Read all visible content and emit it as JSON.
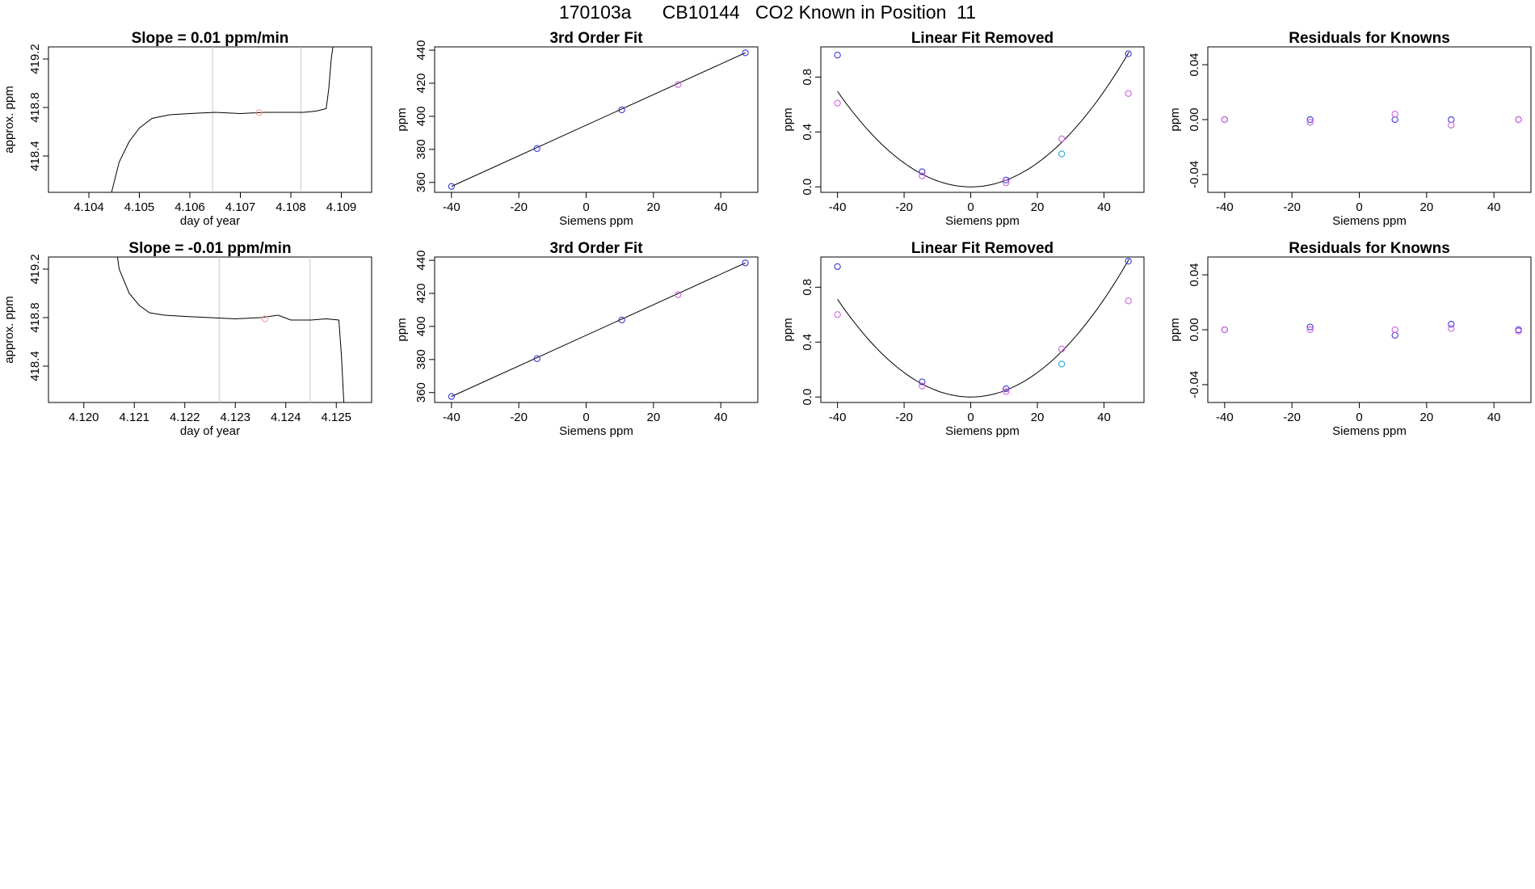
{
  "figure": {
    "title": "170103a      CB10144   CO2 Known in Position  11"
  },
  "chart_data": [
    {
      "type": "line",
      "title": "Slope =  0.01  ppm/min",
      "xlabel": "day of year",
      "ylabel": "approx. ppm",
      "xlim": [
        4.1032,
        4.1096
      ],
      "ylim": [
        418.1,
        419.3
      ],
      "xticks": [
        4.104,
        4.105,
        4.106,
        4.107,
        4.108,
        4.109
      ],
      "yticks": [
        418.4,
        418.8,
        419.2
      ],
      "vlines": [
        4.10645,
        4.1082
      ],
      "series": [
        {
          "x": [
            4.10445,
            4.1046,
            4.1048,
            4.105,
            4.10525,
            4.1056,
            4.106,
            4.1065,
            4.107,
            4.1075,
            4.108,
            4.10825,
            4.1085,
            4.1087,
            4.10875,
            4.1088,
            4.10885
          ],
          "y": [
            418.1,
            418.35,
            418.52,
            418.63,
            418.71,
            418.74,
            418.75,
            418.76,
            418.75,
            418.76,
            418.76,
            418.76,
            418.77,
            418.79,
            418.95,
            419.2,
            419.35
          ]
        }
      ],
      "points": [
        {
          "x": 4.10737,
          "y": 418.757,
          "color": "#ff9d9d"
        }
      ]
    },
    {
      "type": "scatter",
      "title": "3rd Order Fit",
      "xlabel": "Siemens ppm",
      "ylabel": "ppm",
      "xlim": [
        -45,
        51
      ],
      "ylim": [
        354,
        442
      ],
      "xticks": [
        -40,
        -20,
        0,
        20,
        40
      ],
      "yticks": [
        360,
        380,
        400,
        420,
        440
      ],
      "fit": [
        [
          -40,
          357.6
        ],
        [
          47.3,
          438.4
        ]
      ],
      "points": [
        {
          "x": -40,
          "y": 357.6,
          "color": "#3a3ad8"
        },
        {
          "x": -14.6,
          "y": 380.5,
          "color": "#3a3ad8"
        },
        {
          "x": 10.6,
          "y": 403.9,
          "color": "#3a3ad8"
        },
        {
          "x": 27.3,
          "y": 419.2,
          "color": "#d060e0"
        },
        {
          "x": 47.3,
          "y": 438.4,
          "color": "#3a3ad8"
        }
      ]
    },
    {
      "type": "scatter",
      "title": "Linear Fit Removed",
      "xlabel": "Siemens ppm",
      "ylabel": "ppm",
      "xlim": [
        -45,
        52
      ],
      "ylim": [
        -0.04,
        1.02
      ],
      "xticks": [
        -40,
        -20,
        0,
        20,
        40
      ],
      "yticks": [
        0.0,
        0.4,
        0.8
      ],
      "curve": {
        "a": 0.000435,
        "from": -40,
        "to": 47.5
      },
      "points": [
        {
          "x": -40,
          "y": 0.96,
          "color": "#3a3ad8"
        },
        {
          "x": -40,
          "y": 0.61,
          "color": "#d060e0"
        },
        {
          "x": -14.6,
          "y": 0.11,
          "color": "#3a3ad8"
        },
        {
          "x": -14.6,
          "y": 0.08,
          "color": "#d060e0"
        },
        {
          "x": 10.6,
          "y": 0.05,
          "color": "#3a3ad8"
        },
        {
          "x": 10.6,
          "y": 0.03,
          "color": "#d060e0"
        },
        {
          "x": 27.3,
          "y": 0.35,
          "color": "#d060e0"
        },
        {
          "x": 27.3,
          "y": 0.24,
          "color": "#22aadd"
        },
        {
          "x": 47.3,
          "y": 0.97,
          "color": "#3a3ad8"
        },
        {
          "x": 47.3,
          "y": 0.68,
          "color": "#d060e0"
        }
      ]
    },
    {
      "type": "scatter",
      "title": "Residuals for Knowns",
      "xlabel": "Siemens ppm",
      "ylabel": "ppm",
      "xlim": [
        -45,
        51
      ],
      "ylim": [
        -0.053,
        0.053
      ],
      "xticks": [
        -40,
        -20,
        0,
        20,
        40
      ],
      "yticks": [
        -0.04,
        0.0,
        0.04
      ],
      "ytick_labels": [
        "-0.04",
        "0.00",
        "0.04"
      ],
      "points": [
        {
          "x": -40,
          "y": 0.0,
          "color": "#3a3ad8"
        },
        {
          "x": -40,
          "y": 0.0,
          "color": "#d060e0"
        },
        {
          "x": -14.6,
          "y": 0.0,
          "color": "#3a3ad8"
        },
        {
          "x": -14.6,
          "y": -0.002,
          "color": "#d060e0"
        },
        {
          "x": 10.6,
          "y": 0.0,
          "color": "#3a3ad8"
        },
        {
          "x": 10.6,
          "y": 0.004,
          "color": "#d060e0"
        },
        {
          "x": 27.3,
          "y": 0.0,
          "color": "#3a3ad8"
        },
        {
          "x": 27.3,
          "y": -0.004,
          "color": "#d060e0"
        },
        {
          "x": 47.3,
          "y": 0.0,
          "color": "#3a3ad8"
        },
        {
          "x": 47.3,
          "y": 0.0,
          "color": "#d060e0"
        }
      ]
    },
    {
      "type": "line",
      "title": "Slope =  -0.01  ppm/min",
      "xlabel": "day of year",
      "ylabel": "approx. ppm",
      "xlim": [
        4.1193,
        4.1257
      ],
      "ylim": [
        418.1,
        419.3
      ],
      "xticks": [
        4.12,
        4.121,
        4.122,
        4.123,
        4.124,
        4.125
      ],
      "yticks": [
        418.4,
        418.8,
        419.2
      ],
      "vlines": [
        4.12268,
        4.12448
      ],
      "series": [
        {
          "x": [
            4.12065,
            4.1207,
            4.1209,
            4.1211,
            4.1213,
            4.1216,
            4.122,
            4.1225,
            4.123,
            4.1235,
            4.12385,
            4.1241,
            4.1245,
            4.1248,
            4.12505,
            4.1251,
            4.12515
          ],
          "y": [
            419.35,
            419.2,
            419.0,
            418.9,
            418.84,
            418.82,
            418.81,
            418.8,
            418.79,
            418.8,
            418.82,
            418.78,
            418.78,
            418.79,
            418.78,
            418.5,
            418.1
          ]
        }
      ],
      "points": [
        {
          "x": 4.12359,
          "y": 418.79,
          "color": "#ff9d9d"
        }
      ]
    },
    {
      "type": "scatter",
      "title": "3rd Order Fit",
      "xlabel": "Siemens ppm",
      "ylabel": "ppm",
      "xlim": [
        -45,
        51
      ],
      "ylim": [
        354,
        442
      ],
      "xticks": [
        -40,
        -20,
        0,
        20,
        40
      ],
      "yticks": [
        360,
        380,
        400,
        420,
        440
      ],
      "fit": [
        [
          -40,
          357.6
        ],
        [
          47.3,
          438.4
        ]
      ],
      "points": [
        {
          "x": -40,
          "y": 357.6,
          "color": "#3a3ad8"
        },
        {
          "x": -14.6,
          "y": 380.5,
          "color": "#3a3ad8"
        },
        {
          "x": 10.6,
          "y": 403.9,
          "color": "#3a3ad8"
        },
        {
          "x": 27.3,
          "y": 419.2,
          "color": "#d060e0"
        },
        {
          "x": 47.3,
          "y": 438.4,
          "color": "#3a3ad8"
        }
      ]
    },
    {
      "type": "scatter",
      "title": "Linear Fit Removed",
      "xlabel": "Siemens ppm",
      "ylabel": "ppm",
      "xlim": [
        -45,
        52
      ],
      "ylim": [
        -0.04,
        1.02
      ],
      "xticks": [
        -40,
        -20,
        0,
        20,
        40
      ],
      "yticks": [
        0.0,
        0.4,
        0.8
      ],
      "curve": {
        "a": 0.000445,
        "from": -40,
        "to": 47.5
      },
      "points": [
        {
          "x": -40,
          "y": 0.95,
          "color": "#3a3ad8"
        },
        {
          "x": -40,
          "y": 0.6,
          "color": "#d060e0"
        },
        {
          "x": -14.6,
          "y": 0.11,
          "color": "#3a3ad8"
        },
        {
          "x": -14.6,
          "y": 0.08,
          "color": "#d060e0"
        },
        {
          "x": 10.6,
          "y": 0.06,
          "color": "#3a3ad8"
        },
        {
          "x": 10.6,
          "y": 0.04,
          "color": "#d060e0"
        },
        {
          "x": 27.3,
          "y": 0.35,
          "color": "#d060e0"
        },
        {
          "x": 27.3,
          "y": 0.24,
          "color": "#22aadd"
        },
        {
          "x": 47.3,
          "y": 0.99,
          "color": "#3a3ad8"
        },
        {
          "x": 47.3,
          "y": 0.7,
          "color": "#d060e0"
        }
      ]
    },
    {
      "type": "scatter",
      "title": "Residuals for Knowns",
      "xlabel": "Siemens ppm",
      "ylabel": "ppm",
      "xlim": [
        -45,
        51
      ],
      "ylim": [
        -0.053,
        0.053
      ],
      "xticks": [
        -40,
        -20,
        0,
        20,
        40
      ],
      "yticks": [
        -0.04,
        0.0,
        0.04
      ],
      "ytick_labels": [
        "-0.04",
        "0.00",
        "0.04"
      ],
      "points": [
        {
          "x": -40,
          "y": 0.0,
          "color": "#3a3ad8"
        },
        {
          "x": -40,
          "y": 0.0,
          "color": "#d060e0"
        },
        {
          "x": -14.6,
          "y": 0.002,
          "color": "#3a3ad8"
        },
        {
          "x": -14.6,
          "y": 0.0,
          "color": "#d060e0"
        },
        {
          "x": 10.6,
          "y": -0.004,
          "color": "#3a3ad8"
        },
        {
          "x": 10.6,
          "y": 0.0,
          "color": "#d060e0"
        },
        {
          "x": 27.3,
          "y": 0.004,
          "color": "#3a3ad8"
        },
        {
          "x": 27.3,
          "y": 0.001,
          "color": "#d060e0"
        },
        {
          "x": 47.3,
          "y": 0.0,
          "color": "#3a3ad8"
        },
        {
          "x": 47.3,
          "y": -0.001,
          "color": "#d060e0"
        }
      ]
    }
  ]
}
